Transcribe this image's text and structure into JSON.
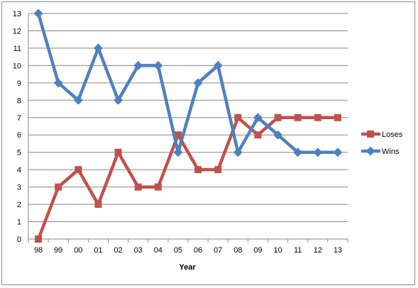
{
  "chart_data": {
    "type": "line",
    "title": "",
    "xlabel": "Year",
    "ylabel": "",
    "ylim": [
      0,
      13
    ],
    "yticks": [
      0,
      1,
      2,
      3,
      4,
      5,
      6,
      7,
      8,
      9,
      10,
      11,
      12,
      13
    ],
    "grid": true,
    "legend": "right",
    "categories": [
      "98",
      "99",
      "00",
      "01",
      "02",
      "03",
      "04",
      "05",
      "06",
      "07",
      "08",
      "09",
      "10",
      "11",
      "12",
      "13"
    ],
    "series": [
      {
        "name": "Loses",
        "color": "#c0504d",
        "marker": "square",
        "values": [
          0,
          3,
          4,
          2,
          5,
          3,
          3,
          6,
          4,
          4,
          7,
          6,
          7,
          7,
          7,
          7
        ]
      },
      {
        "name": "Wins",
        "color": "#4f81bd",
        "marker": "diamond",
        "values": [
          13,
          9,
          8,
          11,
          8,
          10,
          10,
          5,
          9,
          10,
          5,
          7,
          6,
          5,
          5,
          5
        ]
      }
    ]
  }
}
